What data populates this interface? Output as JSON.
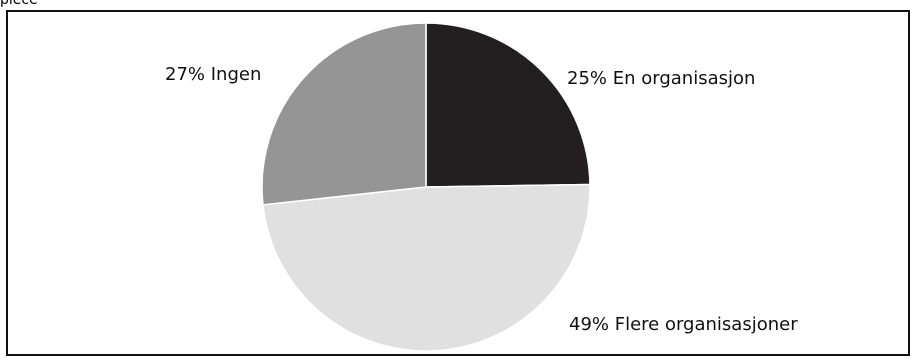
{
  "page_fragment": "piece",
  "chart_data": {
    "type": "pie",
    "slices": [
      {
        "label": "25% En organisasjon",
        "value": 25,
        "color": "#231f20"
      },
      {
        "label": "49% Flere organisasjoner",
        "value": 49,
        "color": "#e0e0e0"
      },
      {
        "label": "27% Ingen",
        "value": 27,
        "color": "#959595"
      }
    ]
  }
}
